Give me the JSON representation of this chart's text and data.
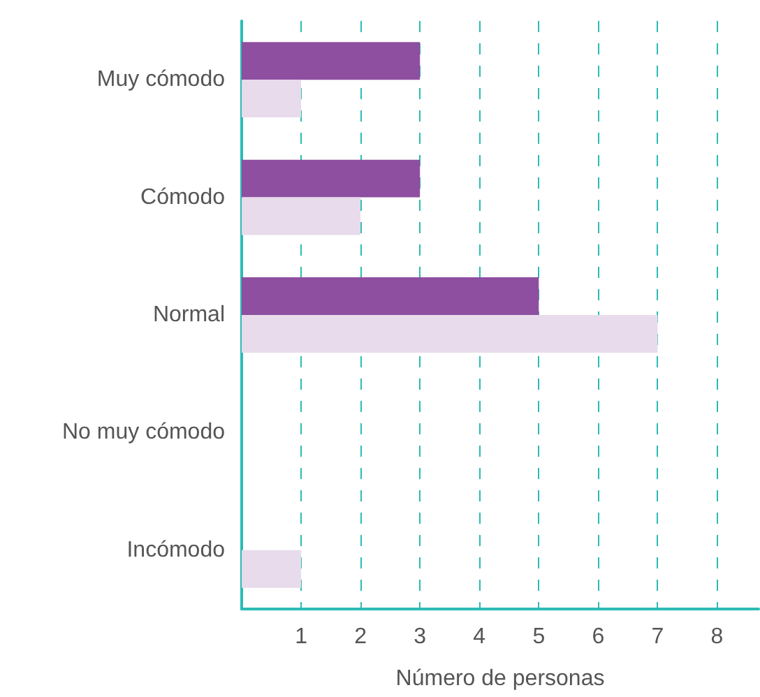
{
  "chart_data": {
    "type": "bar",
    "orientation": "horizontal",
    "xlabel": "Número de personas",
    "categories": [
      "Muy cómodo",
      "Cómodo",
      "Normal",
      "No muy cómodo",
      "Incómodo"
    ],
    "series": [
      {
        "color": "#8e4fa0",
        "values": [
          3,
          3,
          5,
          0,
          0
        ]
      },
      {
        "color": "#e8dbeb",
        "values": [
          1,
          2,
          7,
          0,
          1
        ]
      }
    ],
    "xlim": [
      0,
      8.7
    ],
    "xticks": [
      1,
      2,
      3,
      4,
      5,
      6,
      7,
      8
    ],
    "grid": "x"
  }
}
